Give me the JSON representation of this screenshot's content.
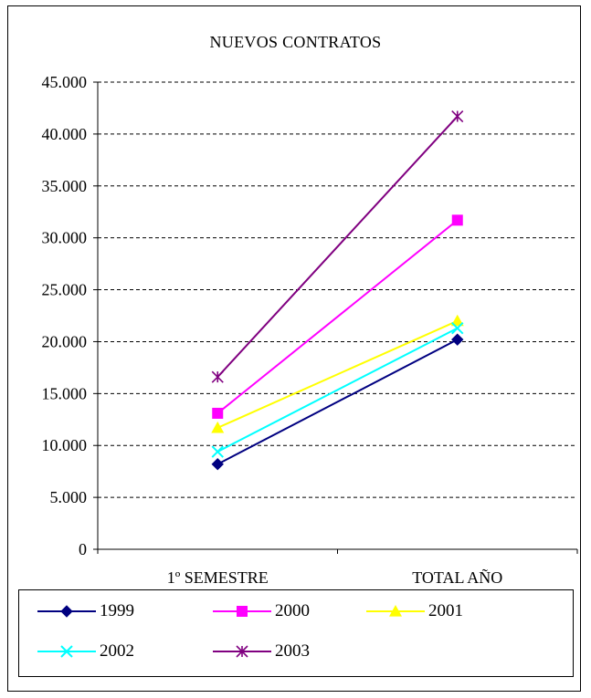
{
  "chart_data": {
    "type": "line",
    "title": "NUEVOS CONTRATOS",
    "xlabel": "",
    "ylabel": "",
    "categories": [
      "1º SEMESTRE",
      "TOTAL AÑO"
    ],
    "ylim": [
      0,
      45000
    ],
    "yticks": [
      0,
      5000,
      10000,
      15000,
      20000,
      25000,
      30000,
      35000,
      40000,
      45000
    ],
    "ytick_labels": [
      "0",
      "5.000",
      "10.000",
      "15.000",
      "20.000",
      "25.000",
      "30.000",
      "35.000",
      "40.000",
      "45.000"
    ],
    "grid": "horizontal-dashed",
    "legend_position": "bottom",
    "series": [
      {
        "name": "1999",
        "values": [
          8200,
          20200
        ],
        "color": "#000080",
        "marker": "diamond"
      },
      {
        "name": "2000",
        "values": [
          13100,
          31700
        ],
        "color": "#ff00ff",
        "marker": "square"
      },
      {
        "name": "2001",
        "values": [
          11700,
          22000
        ],
        "color": "#ffff00",
        "marker": "triangle"
      },
      {
        "name": "2002",
        "values": [
          9400,
          21300
        ],
        "color": "#00ffff",
        "marker": "x"
      },
      {
        "name": "2003",
        "values": [
          16600,
          41700
        ],
        "color": "#800080",
        "marker": "star"
      }
    ]
  }
}
